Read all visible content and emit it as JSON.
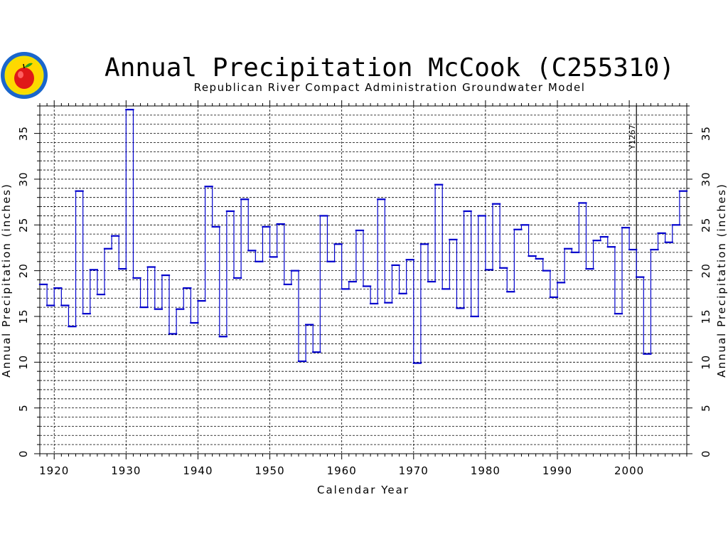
{
  "chart_data": {
    "type": "line",
    "style": "step",
    "title": "Annual Precipitation McCook (C255310)",
    "subtitle": "Republican River Compact Administration Groundwater Model",
    "xlabel": "Calendar Year",
    "ylabel": "Annual Precipitation (inches)",
    "ylabel_right": "Annual Precipitation (inches)",
    "xlim": [
      1918,
      2008
    ],
    "ylim": [
      0,
      38
    ],
    "x_ticks": [
      1920,
      1930,
      1940,
      1950,
      1960,
      1970,
      1980,
      1990,
      2000
    ],
    "y_ticks": [
      0,
      5,
      10,
      15,
      20,
      25,
      30,
      35
    ],
    "grid": true,
    "line_color": "#0000cc",
    "annotation": {
      "label": "Y1267",
      "x": 2001
    },
    "series": [
      {
        "x": [
          1918,
          1919,
          1920,
          1921,
          1922,
          1923,
          1924,
          1925,
          1926,
          1927,
          1928,
          1929,
          1930,
          1931,
          1932,
          1933,
          1934,
          1935,
          1936,
          1937,
          1938,
          1939,
          1940,
          1941,
          1942,
          1943,
          1944,
          1945,
          1946,
          1947,
          1948,
          1949,
          1950,
          1951,
          1952,
          1953,
          1954,
          1955,
          1956,
          1957,
          1958,
          1959,
          1960,
          1961,
          1962,
          1963,
          1964,
          1965,
          1966,
          1967,
          1968,
          1969,
          1970,
          1971,
          1972,
          1973,
          1974,
          1975,
          1976,
          1977,
          1978,
          1979,
          1980,
          1981,
          1982,
          1983,
          1984,
          1985,
          1986,
          1987,
          1988,
          1989,
          1990,
          1991,
          1992,
          1993,
          1994,
          1995,
          1996,
          1997,
          1998,
          1999,
          2000,
          2001,
          2002,
          2003,
          2004,
          2005,
          2006,
          2007
        ],
        "values": [
          18.5,
          16.2,
          18.1,
          16.2,
          13.9,
          28.7,
          15.3,
          20.1,
          17.4,
          22.4,
          23.8,
          20.2,
          37.6,
          19.2,
          16.0,
          20.4,
          15.8,
          19.5,
          13.1,
          15.8,
          18.1,
          14.3,
          16.7,
          29.2,
          24.8,
          12.8,
          26.5,
          19.2,
          27.8,
          22.2,
          21.0,
          24.8,
          21.5,
          25.1,
          18.5,
          20.0,
          10.1,
          14.1,
          11.1,
          26.0,
          21.0,
          22.9,
          18.0,
          18.8,
          24.4,
          18.3,
          16.4,
          27.8,
          16.5,
          20.6,
          17.5,
          21.2,
          9.9,
          22.9,
          18.8,
          29.4,
          18.0,
          23.4,
          15.9,
          26.5,
          15.0,
          26.0,
          20.1,
          27.3,
          20.3,
          17.7,
          24.5,
          25.0,
          21.6,
          21.3,
          20.0,
          17.1,
          18.7,
          22.4,
          22.0,
          27.4,
          20.2,
          23.3,
          23.7,
          22.6,
          15.3,
          24.7,
          22.3,
          19.3,
          10.9,
          22.3,
          24.1,
          23.1,
          25.0,
          28.7
        ]
      }
    ]
  }
}
